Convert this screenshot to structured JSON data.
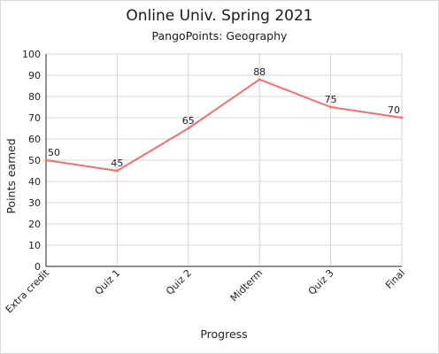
{
  "chart_data": {
    "type": "line",
    "title": "Online Univ. Spring 2021",
    "subtitle": "PangoPoints: Geography",
    "xlabel": "Progress",
    "ylabel": "Points earned",
    "categories": [
      "Extra credit",
      "Quiz 1",
      "Quiz 2",
      "Midterm",
      "Quiz 3",
      "Final"
    ],
    "series": [
      {
        "values": [
          50,
          45,
          65,
          88,
          75,
          70
        ],
        "color": "#f07070"
      }
    ],
    "ylim": [
      0,
      100
    ],
    "yticks": [
      0,
      10,
      20,
      30,
      40,
      50,
      60,
      70,
      80,
      90,
      100
    ],
    "data_labels": true,
    "grid": true,
    "legend": "none"
  }
}
